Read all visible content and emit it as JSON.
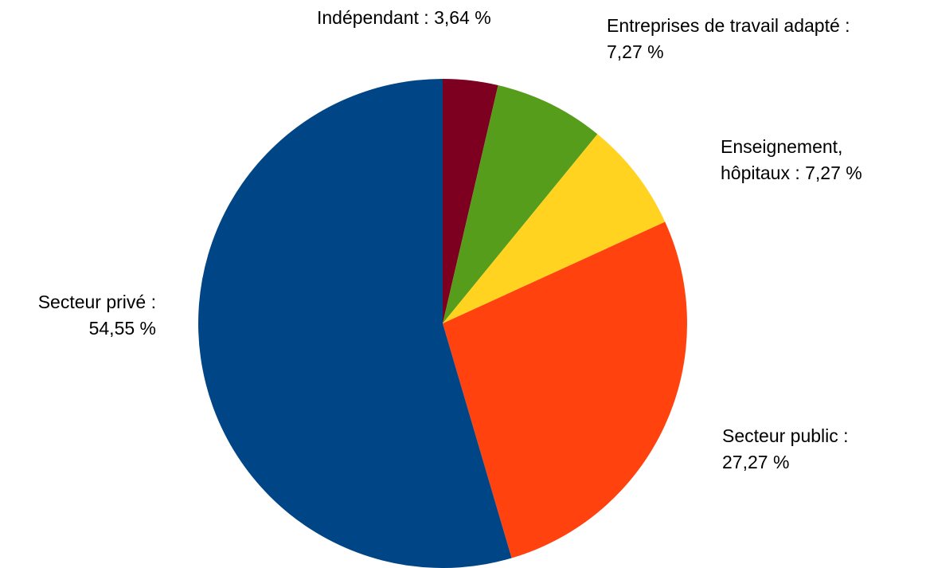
{
  "chart_data": {
    "type": "pie",
    "title": "",
    "start_angle_deg": 0,
    "direction": "clockwise",
    "slices": [
      {
        "name": "Indépendant",
        "value": 3.64,
        "value_label": "3,64 %",
        "color": "#7e0021"
      },
      {
        "name": "Entreprises de travail adapté ",
        "value": 7.27,
        "value_label": "7,27 %",
        "color": "#579d1c"
      },
      {
        "name": "Enseignement, hôpitaux",
        "value": 7.27,
        "value_label": "7,27 %",
        "color": "#ffd320"
      },
      {
        "name": "Secteur public",
        "value": 27.27,
        "value_label": "27,27 %",
        "color": "#ff420e"
      },
      {
        "name": "Secteur privé",
        "value": 54.55,
        "value_label": "54,55 %",
        "color": "#004586"
      }
    ],
    "labels": {
      "independant": {
        "line1": "Indépendant : 3,64 %"
      },
      "eta": {
        "line1": "Entreprises de travail adapté  :",
        "line2": "7,27 %"
      },
      "enseignement": {
        "line1": "Enseignement,",
        "line2": "hôpitaux : 7,27 %"
      },
      "public": {
        "line1": "Secteur public :",
        "line2": "27,27 %"
      },
      "prive": {
        "line1": "Secteur privé :",
        "line2": "54,55 %"
      }
    }
  }
}
